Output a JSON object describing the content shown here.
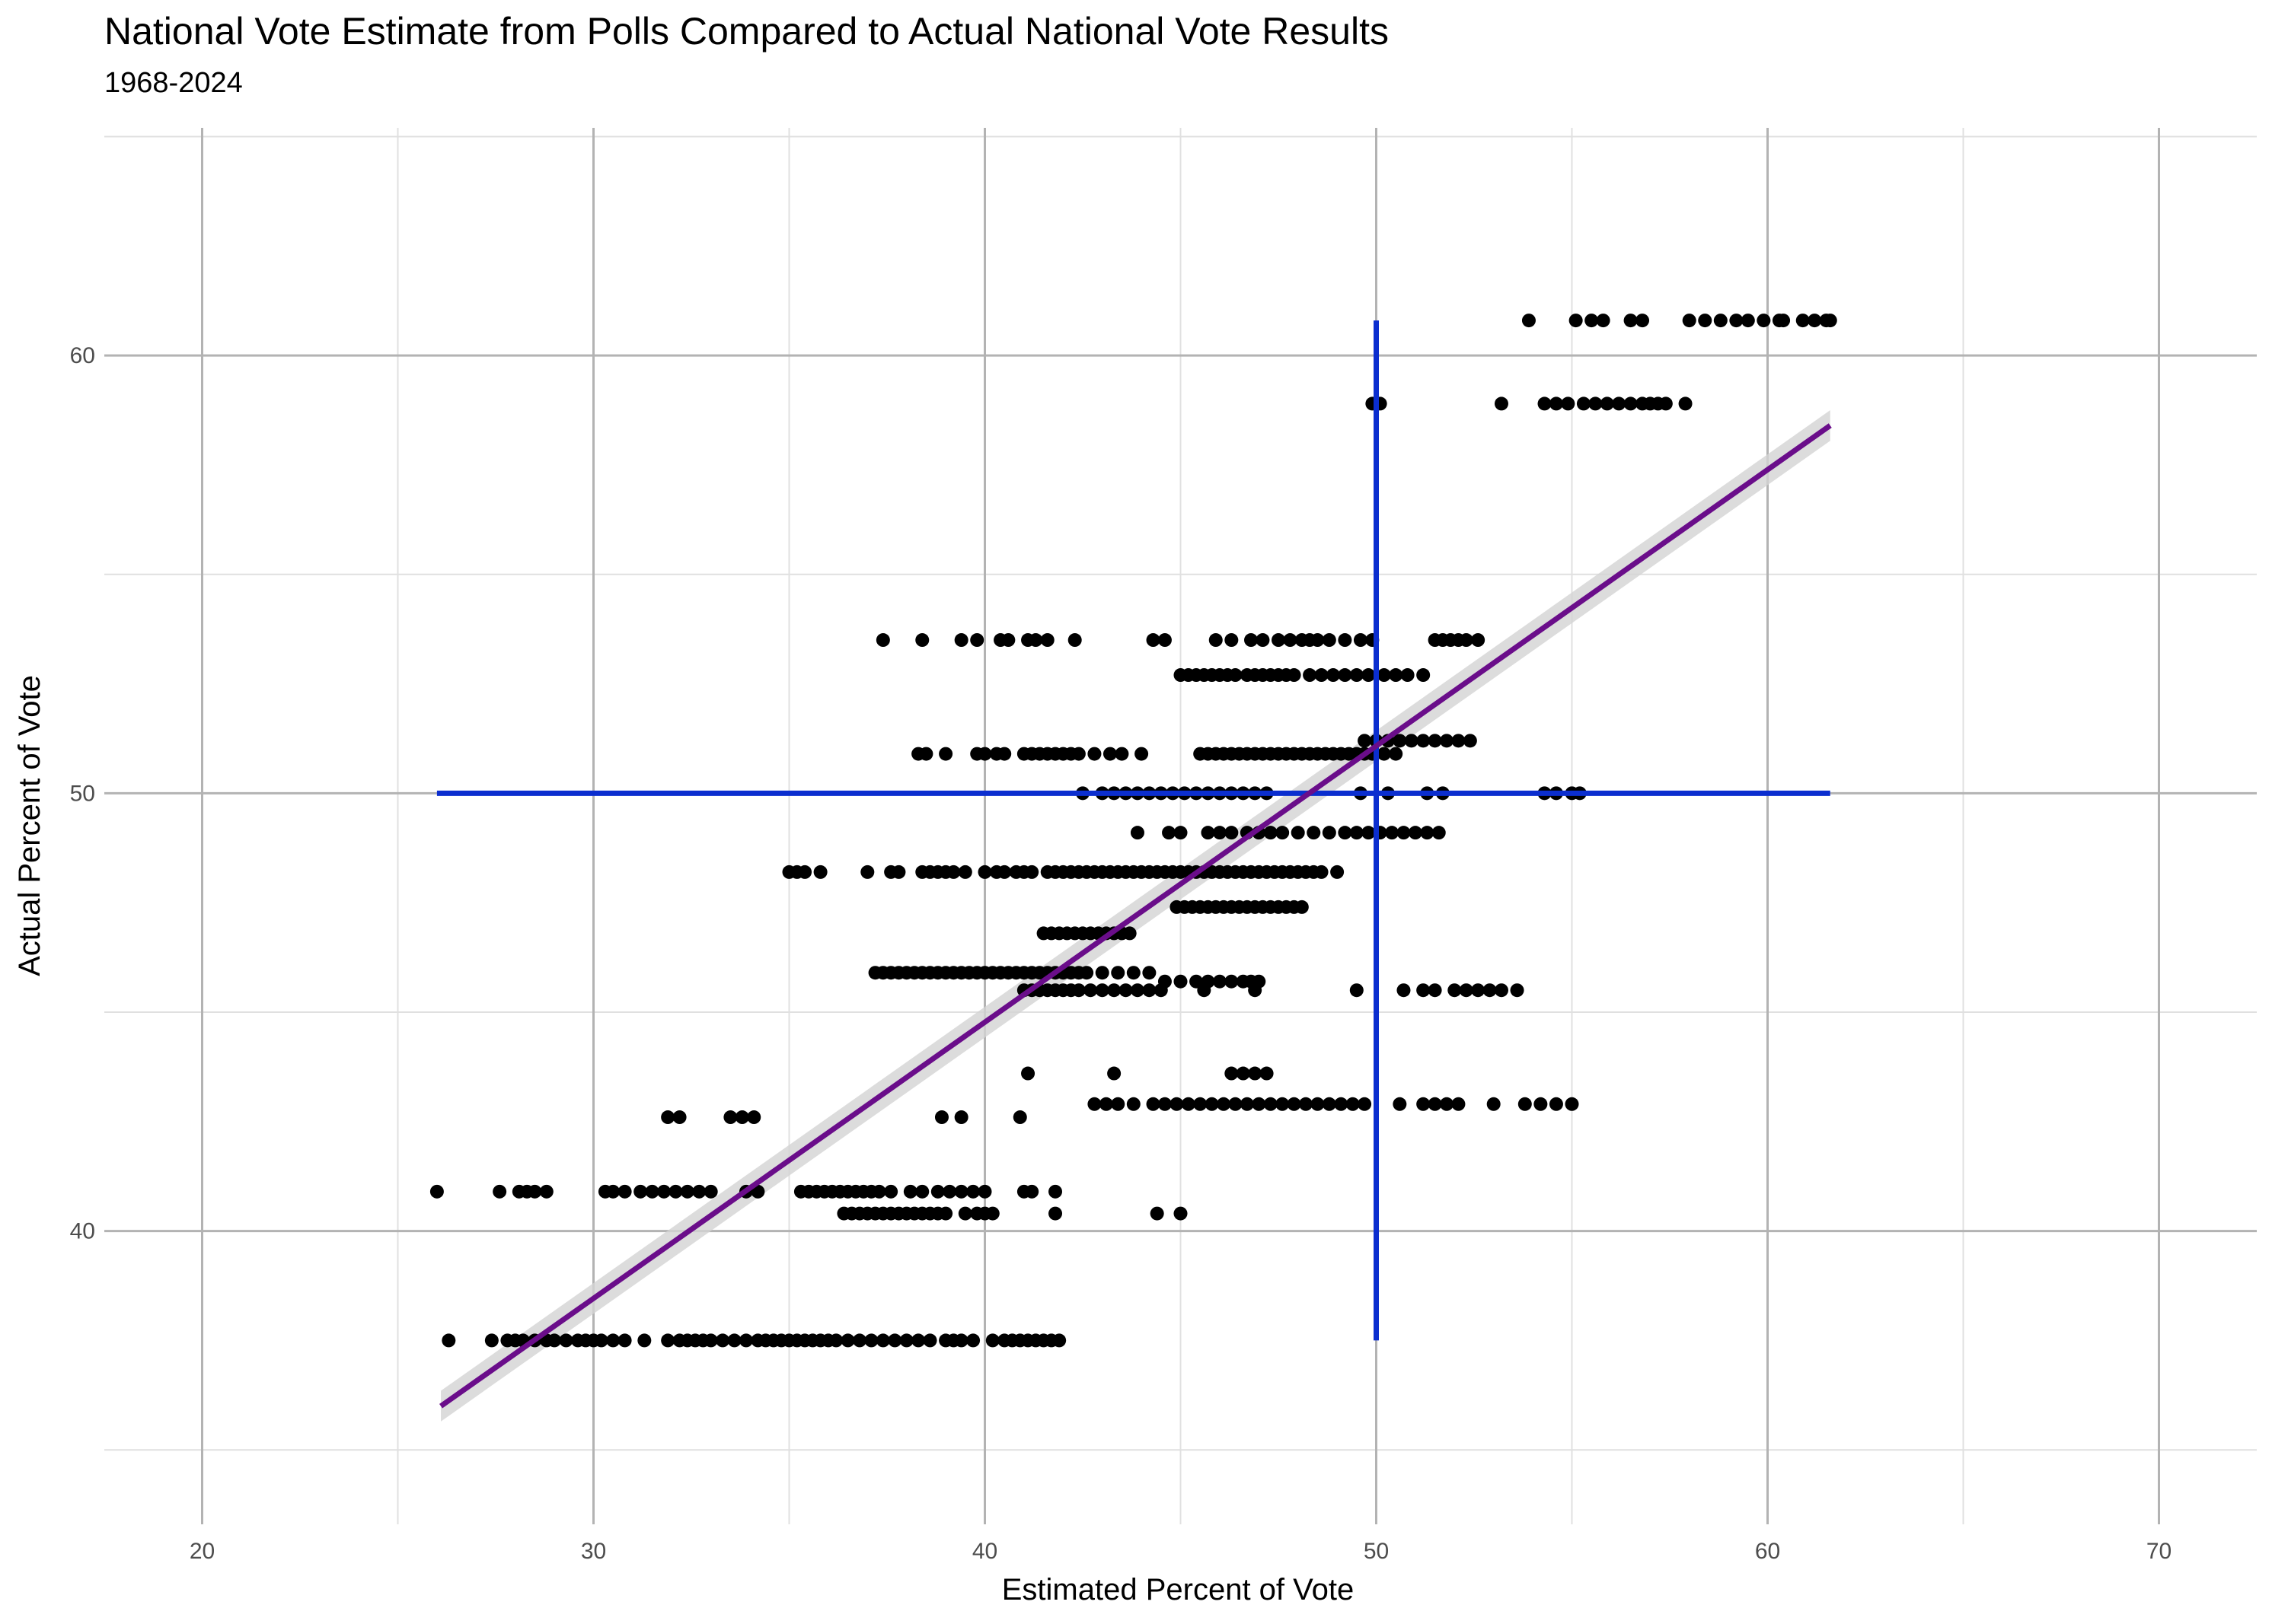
{
  "chart_data": {
    "type": "scatter",
    "title": "National Vote Estimate from Polls Compared to Actual National Vote Results",
    "subtitle": "1968-2024",
    "xlabel": "Estimated Percent of Vote",
    "ylabel": "Actual Percent of Vote",
    "xlim": [
      17.5,
      72.5
    ],
    "ylim": [
      33.3,
      65.2
    ],
    "x_ticks": [
      "20",
      "30",
      "40",
      "50",
      "60",
      "70"
    ],
    "y_ticks": [
      "40",
      "50",
      "60"
    ],
    "grid": true,
    "colors": {
      "points": "#000000",
      "trend": "#6a0d8a",
      "trend_band": "#d3d3d3",
      "reference": "#0b2ecf",
      "grid_major": "#b3b3b3",
      "grid_minor": "#e0e0e0"
    },
    "reference_lines": {
      "vertical": {
        "x": 50,
        "y_from": 37.5,
        "y_to": 60.8
      },
      "horizontal": {
        "y": 50,
        "x_from": 26.0,
        "x_to": 61.6
      }
    },
    "trend_line": {
      "x": [
        26.1,
        61.6
      ],
      "y": [
        36.0,
        58.4
      ]
    },
    "series": [
      {
        "y": 60.8,
        "x": [
          53.9,
          55.1,
          55.5,
          55.8,
          56.5,
          56.8,
          58.0,
          58.4,
          58.8,
          59.2,
          59.5,
          59.9,
          60.3,
          60.4,
          60.9,
          61.2,
          61.5,
          61.6
        ]
      },
      {
        "y": 58.9,
        "x": [
          49.9,
          50.1,
          53.2,
          54.3,
          54.6,
          54.9,
          55.3,
          55.6,
          55.9,
          56.2,
          56.5,
          56.8,
          57.0,
          57.2,
          57.4,
          57.9
        ]
      },
      {
        "y": 53.5,
        "x": [
          37.4,
          38.4,
          39.4,
          39.8,
          40.4,
          40.6,
          41.1,
          41.3,
          41.6,
          42.3,
          44.3,
          44.6,
          45.9,
          46.3,
          46.8,
          47.1,
          47.5,
          47.8,
          48.1,
          48.3,
          48.5,
          48.8,
          49.2,
          49.6,
          49.9,
          51.5,
          51.7,
          51.9,
          52.1,
          52.3,
          52.6
        ]
      },
      {
        "y": 52.7,
        "x": [
          45.0,
          45.2,
          45.4,
          45.6,
          45.8,
          46.0,
          46.2,
          46.4,
          46.7,
          46.9,
          47.1,
          47.3,
          47.5,
          47.7,
          47.9,
          48.3,
          48.6,
          48.9,
          49.2,
          49.5,
          49.8,
          50.2,
          50.5,
          50.8,
          51.2
        ]
      },
      {
        "y": 51.2,
        "x": [
          49.7,
          50.0,
          50.3,
          50.6,
          50.9,
          51.2,
          51.5,
          51.8,
          52.1,
          52.4
        ]
      },
      {
        "y": 50.9,
        "x": [
          38.3,
          38.5,
          39.0,
          39.8,
          40.0,
          40.3,
          40.5,
          41.0,
          41.2,
          41.4,
          41.6,
          41.8,
          42.0,
          42.2,
          42.4,
          42.8,
          43.2,
          43.5,
          44.0,
          45.5,
          45.7,
          45.9,
          46.1,
          46.3,
          46.5,
          46.7,
          46.9,
          47.1,
          47.3,
          47.5,
          47.7,
          47.9,
          48.1,
          48.3,
          48.5,
          48.7,
          48.9,
          49.1,
          49.3,
          49.5,
          49.7,
          49.9,
          50.2,
          50.5
        ]
      },
      {
        "y": 50.0,
        "x": [
          42.5,
          43.0,
          43.3,
          43.6,
          43.9,
          44.2,
          44.5,
          44.8,
          45.1,
          45.4,
          45.7,
          46.0,
          46.3,
          46.6,
          46.9,
          47.2,
          49.6,
          50.3,
          51.3,
          51.7,
          54.3,
          54.6,
          55.0,
          55.2
        ]
      },
      {
        "y": 49.1,
        "x": [
          43.9,
          44.7,
          45.0,
          45.7,
          46.0,
          46.3,
          46.7,
          47.0,
          47.3,
          47.6,
          48.0,
          48.4,
          48.8,
          49.2,
          49.5,
          49.8,
          50.1,
          50.4,
          50.7,
          51.0,
          51.3,
          51.6
        ]
      },
      {
        "y": 48.2,
        "x": [
          35.0,
          35.2,
          35.4,
          35.8,
          37.0,
          37.6,
          37.8,
          38.4,
          38.6,
          38.8,
          39.0,
          39.2,
          39.5,
          40.0,
          40.3,
          40.5,
          40.8,
          41.0,
          41.2,
          41.6,
          41.8,
          42.0,
          42.2,
          42.4,
          42.6,
          42.8,
          43.0,
          43.2,
          43.4,
          43.6,
          43.8,
          44.0,
          44.2,
          44.4,
          44.6,
          44.8,
          45.0,
          45.2,
          45.4,
          45.6,
          45.8,
          46.0,
          46.2,
          46.4,
          46.6,
          46.8,
          47.0,
          47.2,
          47.4,
          47.6,
          47.8,
          48.0,
          48.2,
          48.4,
          48.6,
          49.0
        ]
      },
      {
        "y": 47.4,
        "x": [
          44.9,
          45.1,
          45.3,
          45.5,
          45.7,
          45.9,
          46.1,
          46.3,
          46.5,
          46.7,
          46.9,
          47.1,
          47.3,
          47.5,
          47.7,
          47.9,
          48.1
        ]
      },
      {
        "y": 46.8,
        "x": [
          41.5,
          41.7,
          41.9,
          42.1,
          42.3,
          42.5,
          42.7,
          42.9,
          43.1,
          43.3,
          43.5,
          43.7
        ]
      },
      {
        "y": 45.9,
        "x": [
          37.2,
          37.4,
          37.6,
          37.8,
          38.0,
          38.2,
          38.4,
          38.6,
          38.8,
          39.0,
          39.2,
          39.4,
          39.6,
          39.8,
          40.0,
          40.2,
          40.4,
          40.6,
          40.8,
          41.0,
          41.2,
          41.4,
          41.6,
          41.8,
          42.0,
          42.2,
          42.4,
          42.6,
          43.0,
          43.4,
          43.8,
          44.2
        ]
      },
      {
        "y": 45.7,
        "x": [
          44.6,
          45.0,
          45.4,
          45.7,
          46.0,
          46.3,
          46.6,
          46.8,
          47.0
        ]
      },
      {
        "y": 45.5,
        "x": [
          41.0,
          41.2,
          41.4,
          41.6,
          41.8,
          42.0,
          42.2,
          42.4,
          42.7,
          43.0,
          43.3,
          43.6,
          43.9,
          44.2,
          44.5,
          45.6,
          46.9,
          49.5,
          50.7,
          51.2,
          51.5,
          52.0,
          52.3,
          52.6,
          52.9,
          53.2,
          53.6
        ]
      },
      {
        "y": 43.6,
        "x": [
          41.1,
          43.3,
          46.3,
          46.6,
          46.9,
          47.2
        ]
      },
      {
        "y": 42.9,
        "x": [
          42.8,
          43.1,
          43.4,
          43.8,
          44.3,
          44.6,
          44.9,
          45.2,
          45.5,
          45.8,
          46.1,
          46.4,
          46.7,
          47.0,
          47.3,
          47.6,
          47.9,
          48.2,
          48.5,
          48.8,
          49.1,
          49.4,
          49.7,
          50.6,
          51.2,
          51.5,
          51.8,
          52.1,
          53.0,
          53.8,
          54.2,
          54.6,
          55.0
        ]
      },
      {
        "y": 42.6,
        "x": [
          31.9,
          32.2,
          33.5,
          33.8,
          34.1,
          38.9,
          39.4,
          40.9
        ]
      },
      {
        "y": 40.9,
        "x": [
          26.0,
          27.6,
          28.1,
          28.3,
          28.5,
          28.8,
          30.3,
          30.5,
          30.8,
          31.2,
          31.5,
          31.8,
          32.1,
          32.4,
          32.7,
          33.0,
          33.9,
          34.2,
          35.3,
          35.5,
          35.7,
          35.9,
          36.1,
          36.3,
          36.5,
          36.7,
          36.9,
          37.1,
          37.3,
          37.6,
          38.1,
          38.4,
          38.8,
          39.1,
          39.4,
          39.7,
          40.0,
          41.0,
          41.2,
          41.8
        ]
      },
      {
        "y": 40.4,
        "x": [
          36.4,
          36.6,
          36.8,
          37.0,
          37.2,
          37.4,
          37.6,
          37.8,
          38.0,
          38.2,
          38.4,
          38.6,
          38.8,
          39.0,
          39.5,
          39.8,
          40.0,
          40.2,
          41.8,
          44.4,
          45.0
        ]
      },
      {
        "y": 37.5,
        "x": [
          26.3,
          27.4,
          27.8,
          28.0,
          28.2,
          28.5,
          28.8,
          29.0,
          29.3,
          29.6,
          29.8,
          30.0,
          30.2,
          30.5,
          30.8,
          31.3,
          31.9,
          32.2,
          32.4,
          32.6,
          32.8,
          33.0,
          33.3,
          33.6,
          33.9,
          34.2,
          34.4,
          34.6,
          34.8,
          35.0,
          35.2,
          35.4,
          35.6,
          35.8,
          36.0,
          36.2,
          36.5,
          36.8,
          37.1,
          37.4,
          37.7,
          38.0,
          38.3,
          38.6,
          39.0,
          39.2,
          39.4,
          39.7,
          40.2,
          40.5,
          40.7,
          40.9,
          41.1,
          41.3,
          41.5,
          41.7,
          41.9
        ]
      }
    ]
  }
}
